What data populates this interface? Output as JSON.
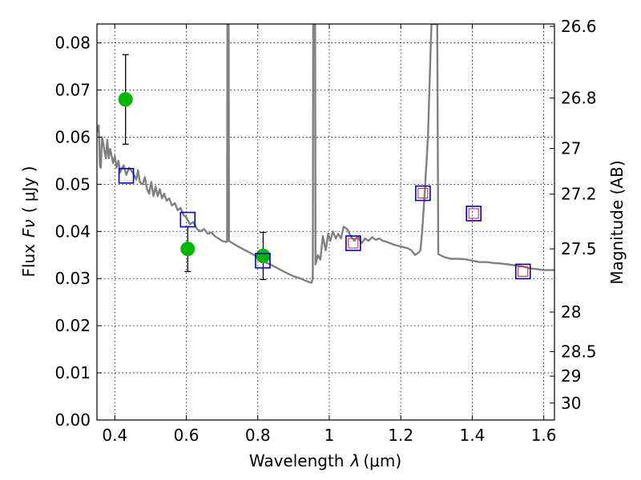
{
  "chart_data": {
    "type": "scatter",
    "xlabel": "Wavelength",
    "xlabel_symbol": "λ",
    "xlabel_unit": "(μm)",
    "ylabel": "Flux",
    "ylabel_symbol": "Fν",
    "ylabel_unit": "( μJy )",
    "ylabel_right": "Magnitude (AB)",
    "xlim": [
      0.35,
      1.63
    ],
    "ylim": [
      0.0,
      0.084
    ],
    "x_ticks": [
      0.4,
      0.6,
      0.8,
      1.0,
      1.2,
      1.4,
      1.6
    ],
    "x_tick_labels": [
      "0.4",
      "0.6",
      "0.8",
      "1",
      "1.2",
      "1.4",
      "1.6"
    ],
    "y_ticks": [
      0.0,
      0.01,
      0.02,
      0.03,
      0.04,
      0.05,
      0.06,
      0.07,
      0.08
    ],
    "y_tick_labels": [
      "0.00",
      "0.01",
      "0.02",
      "0.03",
      "0.04",
      "0.05",
      "0.06",
      "0.07",
      "0.08"
    ],
    "right_ticks": [
      {
        "label": "26.6",
        "flux": 0.0835
      },
      {
        "label": "26.8",
        "flux": 0.0683
      },
      {
        "label": "27",
        "flux": 0.0576
      },
      {
        "label": "27.2",
        "flux": 0.0479
      },
      {
        "label": "27.5",
        "flux": 0.0363
      },
      {
        "label": "28",
        "flux": 0.0229
      },
      {
        "label": "28.5",
        "flux": 0.0145
      },
      {
        "label": "29",
        "flux": 0.0093
      },
      {
        "label": "30",
        "flux": 0.0036
      }
    ],
    "grid": true,
    "grid_style": "dotted",
    "series": [
      {
        "kind": "line",
        "color": "#808080",
        "points": [
          [
            0.35,
            0.061
          ],
          [
            0.355,
            0.0625
          ],
          [
            0.358,
            0.054
          ],
          [
            0.361,
            0.0535
          ],
          [
            0.364,
            0.06
          ],
          [
            0.367,
            0.059
          ],
          [
            0.371,
            0.057
          ],
          [
            0.375,
            0.0555
          ],
          [
            0.379,
            0.0595
          ],
          [
            0.383,
            0.0555
          ],
          [
            0.387,
            0.0575
          ],
          [
            0.391,
            0.056
          ],
          [
            0.395,
            0.0545
          ],
          [
            0.4,
            0.056
          ],
          [
            0.405,
            0.0535
          ],
          [
            0.41,
            0.055
          ],
          [
            0.415,
            0.0525
          ],
          [
            0.42,
            0.0535
          ],
          [
            0.425,
            0.054
          ],
          [
            0.432,
            0.052
          ],
          [
            0.44,
            0.0535
          ],
          [
            0.45,
            0.0525
          ],
          [
            0.46,
            0.051
          ],
          [
            0.465,
            0.053
          ],
          [
            0.47,
            0.0505
          ],
          [
            0.478,
            0.05
          ],
          [
            0.484,
            0.0515
          ],
          [
            0.49,
            0.049
          ],
          [
            0.496,
            0.048
          ],
          [
            0.502,
            0.0505
          ],
          [
            0.508,
            0.0475
          ],
          [
            0.514,
            0.0495
          ],
          [
            0.52,
            0.0475
          ],
          [
            0.526,
            0.049
          ],
          [
            0.532,
            0.047
          ],
          [
            0.538,
            0.048
          ],
          [
            0.545,
            0.0465
          ],
          [
            0.552,
            0.047
          ],
          [
            0.56,
            0.0455
          ],
          [
            0.568,
            0.046
          ],
          [
            0.576,
            0.0445
          ],
          [
            0.584,
            0.045
          ],
          [
            0.592,
            0.0435
          ],
          [
            0.6,
            0.043
          ],
          [
            0.61,
            0.0415
          ],
          [
            0.62,
            0.042
          ],
          [
            0.63,
            0.0405
          ],
          [
            0.64,
            0.04
          ],
          [
            0.65,
            0.0405
          ],
          [
            0.66,
            0.0395
          ],
          [
            0.67,
            0.0398
          ],
          [
            0.68,
            0.039
          ],
          [
            0.69,
            0.0385
          ],
          [
            0.7,
            0.038
          ],
          [
            0.71,
            0.0378
          ],
          [
            0.714,
            0.0378
          ],
          [
            0.715,
            0.084
          ],
          [
            0.7185,
            0.084
          ],
          [
            0.7195,
            0.038
          ],
          [
            0.73,
            0.0375
          ],
          [
            0.745,
            0.0368
          ],
          [
            0.76,
            0.0362
          ],
          [
            0.775,
            0.0356
          ],
          [
            0.79,
            0.035
          ],
          [
            0.805,
            0.0343
          ],
          [
            0.82,
            0.0335
          ],
          [
            0.84,
            0.0328
          ],
          [
            0.86,
            0.032
          ],
          [
            0.88,
            0.0312
          ],
          [
            0.9,
            0.0305
          ],
          [
            0.92,
            0.03
          ],
          [
            0.935,
            0.0295
          ],
          [
            0.945,
            0.0292
          ],
          [
            0.95,
            0.0291
          ],
          [
            0.954,
            0.03
          ],
          [
            0.955,
            0.084
          ],
          [
            0.9605,
            0.084
          ],
          [
            0.9615,
            0.033
          ],
          [
            0.968,
            0.035
          ],
          [
            0.975,
            0.034
          ],
          [
            0.982,
            0.039
          ],
          [
            0.99,
            0.036
          ],
          [
            0.997,
            0.0395
          ],
          [
            1.003,
            0.038
          ],
          [
            1.01,
            0.04
          ],
          [
            1.018,
            0.0385
          ],
          [
            1.025,
            0.0395
          ],
          [
            1.033,
            0.0385
          ],
          [
            1.04,
            0.041
          ],
          [
            1.05,
            0.0405
          ],
          [
            1.06,
            0.039
          ],
          [
            1.07,
            0.038
          ],
          [
            1.08,
            0.039
          ],
          [
            1.09,
            0.0375
          ],
          [
            1.1,
            0.0385
          ],
          [
            1.11,
            0.038
          ],
          [
            1.12,
            0.0388
          ],
          [
            1.13,
            0.0382
          ],
          [
            1.14,
            0.0385
          ],
          [
            1.15,
            0.038
          ],
          [
            1.16,
            0.0378
          ],
          [
            1.17,
            0.0375
          ],
          [
            1.18,
            0.0372
          ],
          [
            1.19,
            0.037
          ],
          [
            1.2,
            0.0368
          ],
          [
            1.21,
            0.0366
          ],
          [
            1.22,
            0.0364
          ],
          [
            1.23,
            0.036
          ],
          [
            1.24,
            0.035
          ],
          [
            1.25,
            0.0355
          ],
          [
            1.255,
            0.036
          ],
          [
            1.26,
            0.04
          ],
          [
            1.266,
            0.047
          ],
          [
            1.27,
            0.052
          ],
          [
            1.276,
            0.06
          ],
          [
            1.28,
            0.07
          ],
          [
            1.284,
            0.08
          ],
          [
            1.286,
            0.084
          ],
          [
            1.302,
            0.084
          ],
          [
            1.305,
            0.0352
          ],
          [
            1.32,
            0.0346
          ],
          [
            1.34,
            0.0342
          ],
          [
            1.36,
            0.0342
          ],
          [
            1.38,
            0.0341
          ],
          [
            1.4,
            0.0338
          ],
          [
            1.42,
            0.0335
          ],
          [
            1.44,
            0.0335
          ],
          [
            1.46,
            0.0333
          ],
          [
            1.48,
            0.0332
          ],
          [
            1.5,
            0.033
          ],
          [
            1.52,
            0.0328
          ],
          [
            1.54,
            0.0326
          ],
          [
            1.56,
            0.0322
          ],
          [
            1.58,
            0.032
          ],
          [
            1.6,
            0.0318
          ],
          [
            1.63,
            0.0318
          ]
        ]
      },
      {
        "kind": "points",
        "marker": "circle",
        "color": "#00b800",
        "points": [
          {
            "x": 0.43,
            "y": 0.068,
            "yerr_lo": 0.0585,
            "yerr_hi": 0.0775
          },
          {
            "x": 0.604,
            "y": 0.0363,
            "yerr_lo": 0.0315,
            "yerr_hi": 0.041
          },
          {
            "x": 0.815,
            "y": 0.0348,
            "yerr_lo": 0.0298,
            "yerr_hi": 0.0398
          }
        ]
      },
      {
        "kind": "points",
        "marker": "square",
        "color": "#0000cc",
        "points": [
          {
            "x": 0.432,
            "y": 0.0518
          },
          {
            "x": 0.604,
            "y": 0.0425
          },
          {
            "x": 0.814,
            "y": 0.0338
          },
          {
            "x": 1.067,
            "y": 0.0375
          },
          {
            "x": 1.262,
            "y": 0.0481
          },
          {
            "x": 1.404,
            "y": 0.0438
          },
          {
            "x": 1.542,
            "y": 0.0315
          }
        ]
      },
      {
        "kind": "points",
        "marker": "square-small",
        "color": "#cc3333",
        "points": [
          {
            "x": 1.067,
            "y": 0.0375
          },
          {
            "x": 1.262,
            "y": 0.0481
          },
          {
            "x": 1.404,
            "y": 0.0438
          },
          {
            "x": 1.542,
            "y": 0.0315
          }
        ]
      }
    ]
  }
}
